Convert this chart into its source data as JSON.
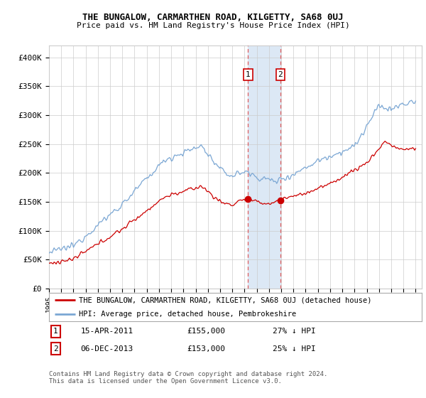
{
  "title": "THE BUNGALOW, CARMARTHEN ROAD, KILGETTY, SA68 0UJ",
  "subtitle": "Price paid vs. HM Land Registry's House Price Index (HPI)",
  "legend_line1": "THE BUNGALOW, CARMARTHEN ROAD, KILGETTY, SA68 0UJ (detached house)",
  "legend_line2": "HPI: Average price, detached house, Pembrokeshire",
  "annotation1_label": "1",
  "annotation1_date": "15-APR-2011",
  "annotation1_price": "£155,000",
  "annotation1_hpi": "27% ↓ HPI",
  "annotation2_label": "2",
  "annotation2_date": "06-DEC-2013",
  "annotation2_price": "£153,000",
  "annotation2_hpi": "25% ↓ HPI",
  "footer": "Contains HM Land Registry data © Crown copyright and database right 2024.\nThis data is licensed under the Open Government Licence v3.0.",
  "red_color": "#cc0000",
  "blue_color": "#7ba7d4",
  "vline_color": "#e06060",
  "span_color": "#dce8f5",
  "ylim": [
    0,
    420000
  ],
  "yticks": [
    0,
    50000,
    100000,
    150000,
    200000,
    250000,
    300000,
    350000,
    400000
  ],
  "ytick_labels": [
    "£0",
    "£50K",
    "£100K",
    "£150K",
    "£200K",
    "£250K",
    "£300K",
    "£350K",
    "£400K"
  ],
  "xlim": [
    1995,
    2025.5
  ],
  "xtick_years": [
    1995,
    1996,
    1997,
    1998,
    1999,
    2000,
    2001,
    2002,
    2003,
    2004,
    2005,
    2006,
    2007,
    2008,
    2009,
    2010,
    2011,
    2012,
    2013,
    2014,
    2015,
    2016,
    2017,
    2018,
    2019,
    2020,
    2021,
    2022,
    2023,
    2024,
    2025
  ],
  "sale1_year": 2011.29,
  "sale2_year": 2013.92,
  "sale1_price": 155000,
  "sale2_price": 153000,
  "background_color": "#ffffff",
  "grid_color": "#cccccc"
}
